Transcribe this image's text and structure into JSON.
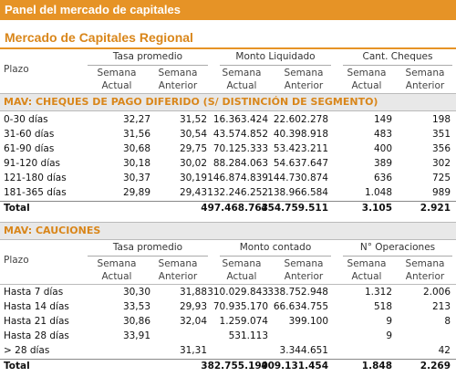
{
  "header": {
    "title": "Panel del mercado de capitales"
  },
  "subtitle": "Mercado de Capitales Regional",
  "sections": [
    {
      "title": "MAV: CHEQUES DE PAGO DIFERIDO (S/ DISTINCIÓN DE SEGMENTO)",
      "plazo": "Plazo",
      "groups": [
        {
          "label": "Tasa promedio",
          "sub": [
            "Semana Actual",
            "Semana Anterior"
          ]
        },
        {
          "label": "Monto Liquidado",
          "sub": [
            "Semana Actual",
            "Semana Anterior"
          ]
        },
        {
          "label": "Cant. Cheques",
          "sub": [
            "Semana Actual",
            "Semana Anterior"
          ]
        }
      ],
      "rows": [
        [
          "0-30 días",
          "32,27",
          "31,52",
          "16.363.424",
          "22.602.278",
          "149",
          "198"
        ],
        [
          "31-60 días",
          "31,56",
          "30,54",
          "43.574.852",
          "40.398.918",
          "483",
          "351"
        ],
        [
          "61-90 días",
          "30,68",
          "29,75",
          "70.125.333",
          "53.423.211",
          "400",
          "356"
        ],
        [
          "91-120 días",
          "30,18",
          "30,02",
          "88.284.063",
          "54.637.647",
          "389",
          "302"
        ],
        [
          "121-180 días",
          "30,37",
          "30,19",
          "146.874.839",
          "144.730.874",
          "636",
          "725"
        ],
        [
          "181-365 días",
          "29,89",
          "29,43",
          "132.246.252",
          "138.966.584",
          "1.048",
          "989"
        ]
      ],
      "total": [
        "Total",
        null,
        null,
        "497.468.763",
        "454.759.511",
        "3.105",
        "2.921"
      ]
    },
    {
      "title": "MAV: CAUCIONES",
      "plazo": "Plazo",
      "groups": [
        {
          "label": "Tasa promedio",
          "sub": [
            "Semana Actual",
            "Semana Anterior"
          ]
        },
        {
          "label": "Monto contado",
          "sub": [
            "Semana Actual",
            "Semana Anterior"
          ]
        },
        {
          "label": "N° Operaciones",
          "sub": [
            "Semana Actual",
            "Semana Anterior"
          ]
        }
      ],
      "rows": [
        [
          "Hasta 7 días",
          "30,30",
          "31,88",
          "310.029.843",
          "338.752.948",
          "1.312",
          "2.006"
        ],
        [
          "Hasta 14 días",
          "33,53",
          "29,93",
          "70.935.170",
          "66.634.755",
          "518",
          "213"
        ],
        [
          "Hasta 21 días",
          "30,86",
          "32,04",
          "1.259.074",
          "399.100",
          "9",
          "8"
        ],
        [
          "Hasta 28 días",
          "33,91",
          null,
          "531.113",
          null,
          "9",
          null
        ],
        [
          "> 28 días",
          null,
          "31,31",
          null,
          "3.344.651",
          null,
          "42"
        ]
      ],
      "total": [
        "Total",
        null,
        null,
        "382.755.199",
        "409.131.454",
        "1.848",
        "2.269"
      ]
    }
  ]
}
